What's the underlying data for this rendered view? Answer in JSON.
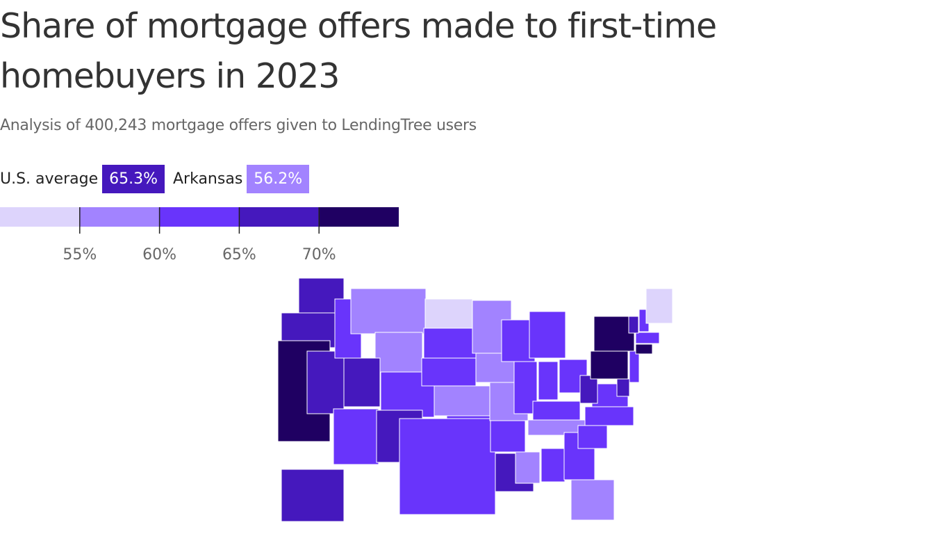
{
  "chart_data": {
    "type": "choropleth",
    "title": "Share of mortgage offers made to first-time homebuyers in 2023",
    "subtitle": "Analysis of 400,243 mortgage offers given to LendingTree users",
    "highlights": {
      "names": [
        "U.S. average",
        "Arkansas"
      ],
      "values": [
        65.3,
        56.2
      ],
      "value_labels": [
        "65.3%",
        "56.2%"
      ]
    },
    "xlim": [
      50,
      75
    ],
    "xticks": [
      {
        "value": 55,
        "label": "55%"
      },
      {
        "value": 60,
        "label": "60%"
      },
      {
        "value": 65,
        "label": "65%"
      },
      {
        "value": 70,
        "label": "70%"
      }
    ],
    "colors": [
      "#ddd4fc",
      "#a283ff",
      "#6934fb",
      "#4518bd",
      "#1f0062"
    ],
    "values": [
      67,
      67,
      72,
      67,
      62,
      57,
      57,
      67,
      62,
      62,
      67,
      52,
      62,
      62,
      57,
      62,
      62,
      57,
      57,
      56.2,
      62,
      67,
      62,
      62,
      62,
      62,
      62,
      62,
      57,
      57,
      62,
      62,
      57,
      62,
      62,
      62,
      67,
      72,
      72,
      62,
      67,
      72,
      62,
      67,
      62,
      52,
      67
    ]
  }
}
